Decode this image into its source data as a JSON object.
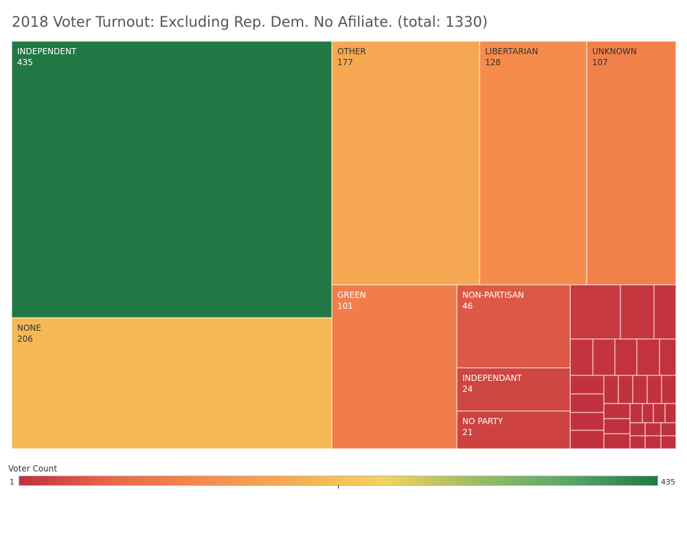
{
  "title": "2018 Voter Turnout: Excluding Rep. Dem. No Afiliate. (total: 1330)",
  "chart_data": {
    "type": "treemap",
    "categories": [
      "INDEPENDENT",
      "NONE",
      "OTHER",
      "LIBERTARIAN",
      "UNKNOWN",
      "GREEN",
      "NON-PARTISAN",
      "INDEPENDANT",
      "NO PARTY"
    ],
    "values": [
      435,
      206,
      177,
      128,
      107,
      101,
      46,
      24,
      21
    ],
    "unlabeled_small_values_estimated": [
      11,
      9,
      6,
      5,
      5,
      4,
      4,
      4,
      3,
      3,
      3,
      3,
      3,
      3,
      2,
      2,
      2,
      2,
      2,
      2,
      2,
      1,
      1,
      1,
      1,
      1,
      1,
      1,
      1,
      1,
      1
    ],
    "color_scale": {
      "title": "Voter Count",
      "min": 1,
      "max": 435,
      "min_label": "1",
      "max_label": "435",
      "colors": [
        "#c0303d",
        "#e8684a",
        "#f58a4c",
        "#f6ad52",
        "#f4d25c",
        "#9bbe63",
        "#5aa86a",
        "#227844"
      ]
    }
  }
}
